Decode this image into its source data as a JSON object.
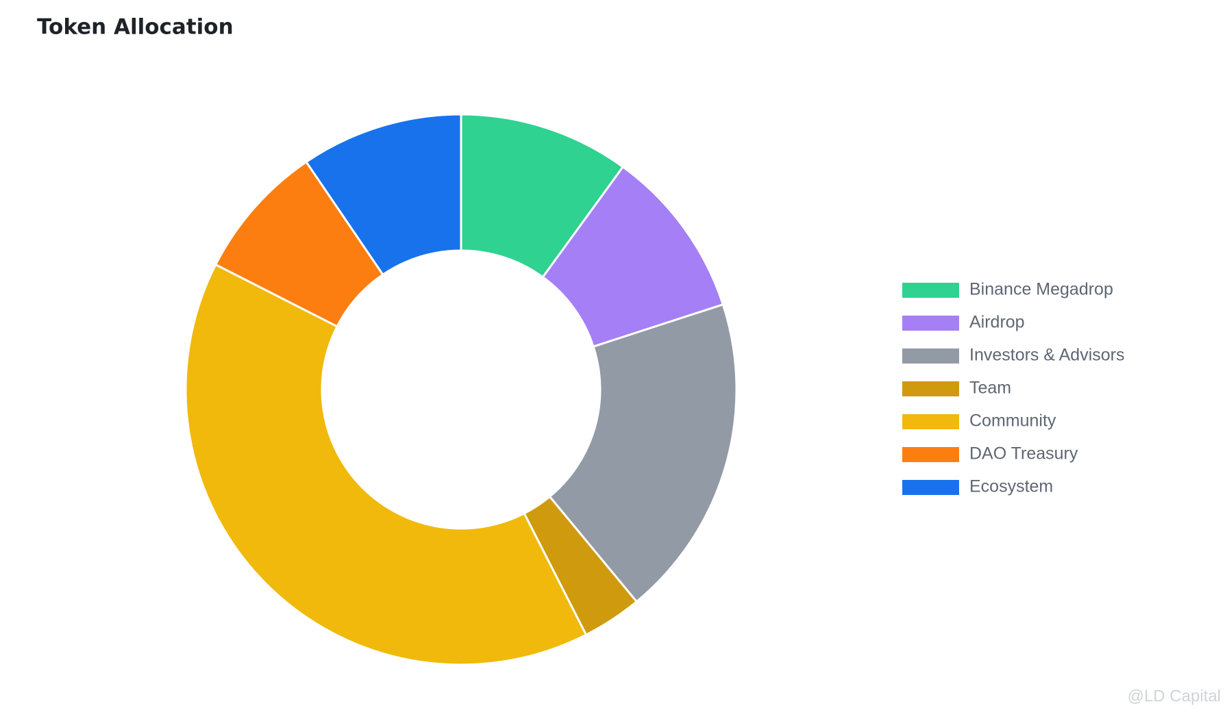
{
  "chart_data": {
    "type": "donut",
    "title": "Token Allocation",
    "categories": [
      "Binance Megadrop",
      "Airdrop",
      "Investors & Advisors",
      "Team",
      "Community",
      "DAO Treasury",
      "Ecosystem"
    ],
    "values": [
      10,
      10,
      19,
      3.5,
      40,
      8,
      9.5
    ],
    "colors": [
      "#2fd291",
      "#a57ff5",
      "#929aa5",
      "#cf9a0d",
      "#f0b90b",
      "#fd7e10",
      "#1872ec"
    ],
    "legend": "right",
    "watermark": "@LD Capital"
  }
}
